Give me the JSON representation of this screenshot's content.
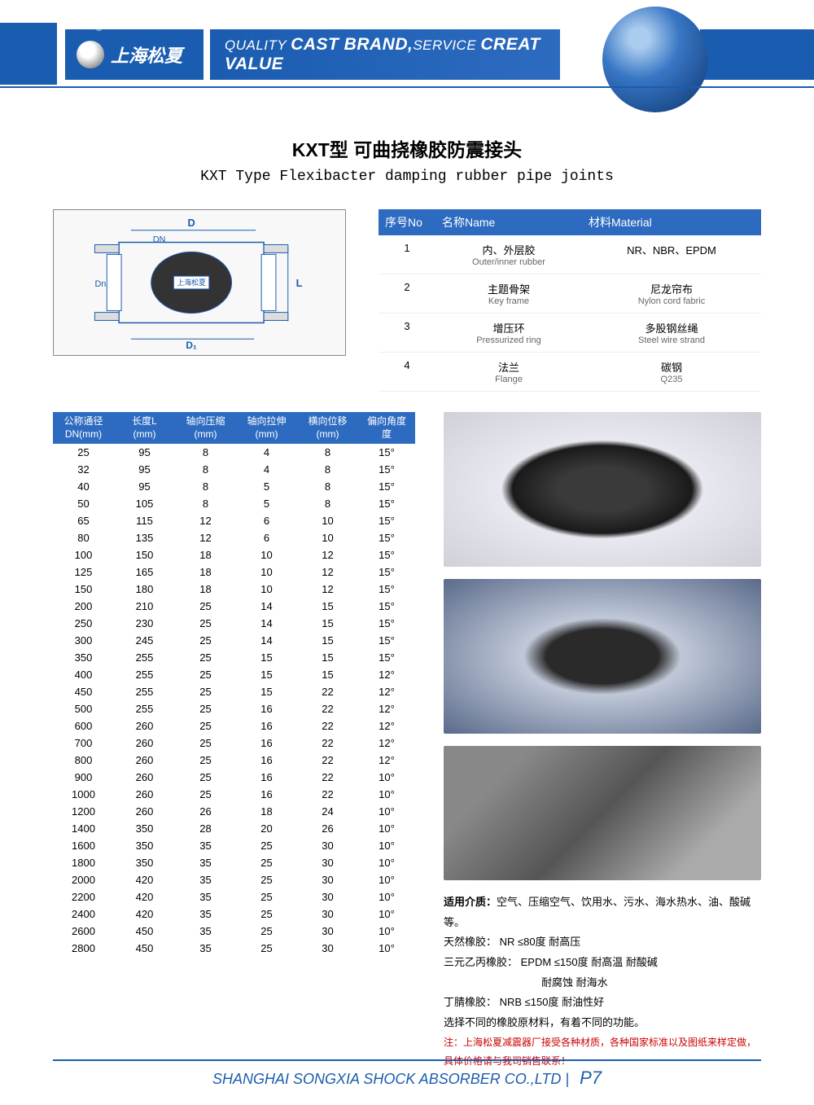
{
  "header": {
    "logo_text": "上海松夏",
    "registered": "®",
    "slogan_html": "QUALITY <span class='big'>CAST BRAND,</span>SERVICE <span class='big'>CREAT VALUE</span>"
  },
  "title": {
    "cn": "KXT型  可曲挠橡胶防震接头",
    "en": "KXT Type Flexibacter damping rubber pipe joints"
  },
  "diagram": {
    "labels": [
      "D",
      "DN",
      "Dn",
      "D₁",
      "L",
      "上海松夏"
    ]
  },
  "material_table": {
    "headers": [
      "序号No",
      "名称Name",
      "材料Material"
    ],
    "rows": [
      {
        "no": "1",
        "name_cn": "内、外层胶",
        "name_en": "Outer/inner rubber",
        "mat_cn": "NR、NBR、EPDM",
        "mat_en": ""
      },
      {
        "no": "2",
        "name_cn": "主题骨架",
        "name_en": "Key frame",
        "mat_cn": "尼龙帘布",
        "mat_en": "Nylon cord fabric"
      },
      {
        "no": "3",
        "name_cn": "增压环",
        "name_en": "Pressurized ring",
        "mat_cn": "多股钢丝绳",
        "mat_en": "Steel wire strand"
      },
      {
        "no": "4",
        "name_cn": "法兰",
        "name_en": "Flange",
        "mat_cn": "碳钢",
        "mat_en": "Q235"
      }
    ]
  },
  "spec_table": {
    "headers": [
      {
        "l1": "公称通径",
        "l2": "DN(mm)"
      },
      {
        "l1": "长度L",
        "l2": "(mm)"
      },
      {
        "l1": "轴向压缩",
        "l2": "(mm)"
      },
      {
        "l1": "轴向拉伸",
        "l2": "(mm)"
      },
      {
        "l1": "横向位移",
        "l2": "(mm)"
      },
      {
        "l1": "偏向角度",
        "l2": "度"
      }
    ],
    "rows": [
      [
        "25",
        "95",
        "8",
        "4",
        "8",
        "15°"
      ],
      [
        "32",
        "95",
        "8",
        "4",
        "8",
        "15°"
      ],
      [
        "40",
        "95",
        "8",
        "5",
        "8",
        "15°"
      ],
      [
        "50",
        "105",
        "8",
        "5",
        "8",
        "15°"
      ],
      [
        "65",
        "115",
        "12",
        "6",
        "10",
        "15°"
      ],
      [
        "80",
        "135",
        "12",
        "6",
        "10",
        "15°"
      ],
      [
        "100",
        "150",
        "18",
        "10",
        "12",
        "15°"
      ],
      [
        "125",
        "165",
        "18",
        "10",
        "12",
        "15°"
      ],
      [
        "150",
        "180",
        "18",
        "10",
        "12",
        "15°"
      ],
      [
        "200",
        "210",
        "25",
        "14",
        "15",
        "15°"
      ],
      [
        "250",
        "230",
        "25",
        "14",
        "15",
        "15°"
      ],
      [
        "300",
        "245",
        "25",
        "14",
        "15",
        "15°"
      ],
      [
        "350",
        "255",
        "25",
        "15",
        "15",
        "15°"
      ],
      [
        "400",
        "255",
        "25",
        "15",
        "15",
        "12°"
      ],
      [
        "450",
        "255",
        "25",
        "15",
        "22",
        "12°"
      ],
      [
        "500",
        "255",
        "25",
        "16",
        "22",
        "12°"
      ],
      [
        "600",
        "260",
        "25",
        "16",
        "22",
        "12°"
      ],
      [
        "700",
        "260",
        "25",
        "16",
        "22",
        "12°"
      ],
      [
        "800",
        "260",
        "25",
        "16",
        "22",
        "12°"
      ],
      [
        "900",
        "260",
        "25",
        "16",
        "22",
        "10°"
      ],
      [
        "1000",
        "260",
        "25",
        "16",
        "22",
        "10°"
      ],
      [
        "1200",
        "260",
        "26",
        "18",
        "24",
        "10°"
      ],
      [
        "1400",
        "350",
        "28",
        "20",
        "26",
        "10°"
      ],
      [
        "1600",
        "350",
        "35",
        "25",
        "30",
        "10°"
      ],
      [
        "1800",
        "350",
        "35",
        "25",
        "30",
        "10°"
      ],
      [
        "2000",
        "420",
        "35",
        "25",
        "30",
        "10°"
      ],
      [
        "2200",
        "420",
        "35",
        "25",
        "30",
        "10°"
      ],
      [
        "2400",
        "420",
        "35",
        "25",
        "30",
        "10°"
      ],
      [
        "2600",
        "450",
        "35",
        "25",
        "30",
        "10°"
      ],
      [
        "2800",
        "450",
        "35",
        "25",
        "30",
        "10°"
      ]
    ]
  },
  "notes": {
    "l1_label": "适用介质：",
    "l1": "空气、压缩空气、饮用水、污水、海水热水、油、酸碱等。",
    "l2": "天然橡胶：  NR   ≤80度  耐高压",
    "l3": "三元乙丙橡胶：  EPDM  ≤150度 耐高温 耐酸碱",
    "l3b": "耐腐蚀 耐海水",
    "l4": "丁腈橡胶：  NRB   ≤150度 耐油性好",
    "l5": "选择不同的橡胶原材料，有着不同的功能。",
    "l6": "注：上海松夏减震器厂接受各种材质，各种国家标准以及图纸来样定做，具体价格请与我司销售联系！"
  },
  "footer": {
    "company": "SHANGHAI SONGXIA SHOCK ABSORBER CO.,LTD",
    "page": "P7"
  }
}
